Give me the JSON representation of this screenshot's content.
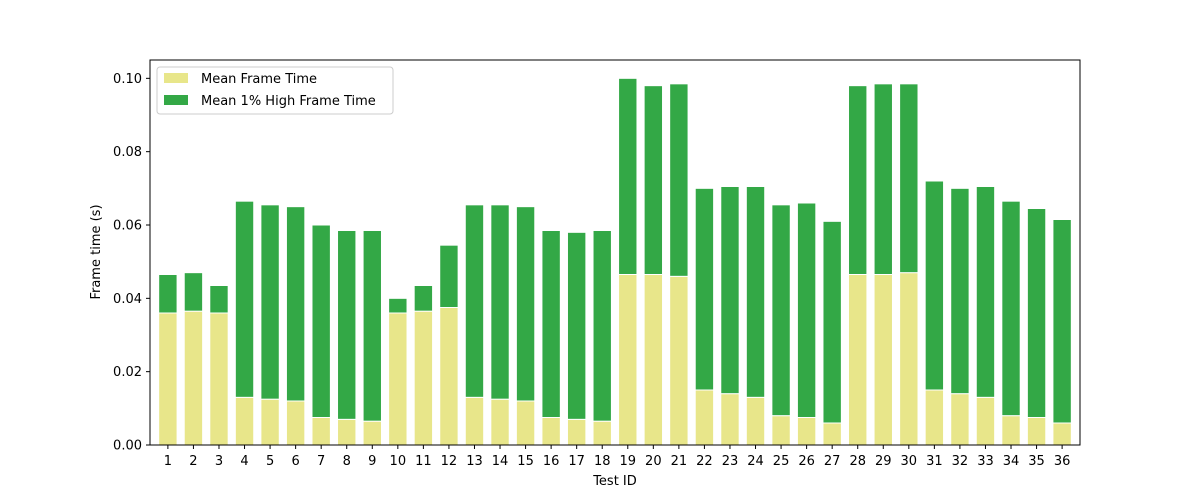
{
  "chart_data": {
    "type": "bar",
    "stacked": true,
    "categories": [
      "1",
      "2",
      "3",
      "4",
      "5",
      "6",
      "7",
      "8",
      "9",
      "10",
      "11",
      "12",
      "13",
      "14",
      "15",
      "16",
      "17",
      "18",
      "19",
      "20",
      "21",
      "22",
      "23",
      "24",
      "25",
      "26",
      "27",
      "28",
      "29",
      "30",
      "31",
      "32",
      "33",
      "34",
      "35",
      "36"
    ],
    "series": [
      {
        "name": "Mean Frame Time",
        "color": "#e8e68a",
        "values": [
          0.036,
          0.0365,
          0.036,
          0.013,
          0.0125,
          0.012,
          0.0075,
          0.007,
          0.0065,
          0.036,
          0.0365,
          0.0375,
          0.013,
          0.0125,
          0.012,
          0.0075,
          0.007,
          0.0065,
          0.0465,
          0.0465,
          0.046,
          0.015,
          0.014,
          0.013,
          0.008,
          0.0075,
          0.006,
          0.0465,
          0.0465,
          0.047,
          0.015,
          0.014,
          0.013,
          0.008,
          0.0075,
          0.006
        ]
      },
      {
        "name": "Mean 1% High Frame Time",
        "color": "#33a846",
        "values": [
          0.0105,
          0.0105,
          0.0075,
          0.0535,
          0.053,
          0.053,
          0.0525,
          0.0515,
          0.052,
          0.004,
          0.007,
          0.017,
          0.0525,
          0.053,
          0.053,
          0.051,
          0.051,
          0.052,
          0.0535,
          0.0515,
          0.0525,
          0.055,
          0.0565,
          0.0575,
          0.0575,
          0.0585,
          0.055,
          0.0515,
          0.052,
          0.0515,
          0.057,
          0.056,
          0.0575,
          0.0585,
          0.057,
          0.0555
        ]
      }
    ],
    "xlabel": "Test ID",
    "ylabel": "Frame time (s)",
    "ylim": [
      0,
      0.105
    ],
    "yticks": [
      "0.00",
      "0.02",
      "0.04",
      "0.06",
      "0.08",
      "0.10"
    ],
    "legend_position": "top-left",
    "grid": false
  }
}
